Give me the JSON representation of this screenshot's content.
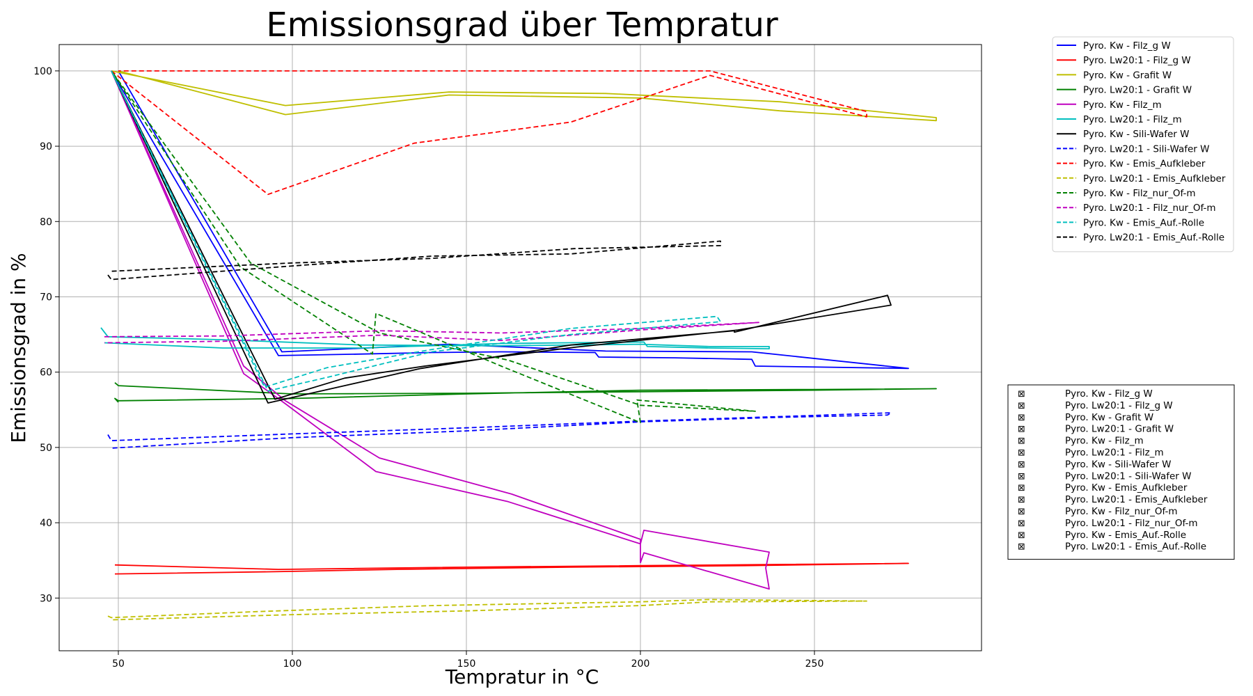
{
  "chart_data": {
    "type": "line",
    "title": "Emissionsgrad über Tempratur",
    "xlabel": "Tempratur in °C",
    "ylabel": "Emissionsgrad in %",
    "xlim": [
      33,
      298
    ],
    "ylim": [
      23,
      103.5
    ],
    "xticks": [
      50,
      100,
      150,
      200,
      250
    ],
    "yticks": [
      30,
      40,
      50,
      60,
      70,
      80,
      90,
      100
    ],
    "grid": true,
    "legend_position": "top-right, outside plot",
    "series": [
      {
        "name": "Pyro. Kw - Filz_g W",
        "color": "#0000ff",
        "dash": "solid",
        "points": [
          [
            48,
            100
          ],
          [
            96,
            62.2
          ],
          [
            120,
            62.4
          ],
          [
            140,
            62.6
          ],
          [
            160,
            62.7
          ],
          [
            187,
            62.6
          ],
          [
            188,
            62.0
          ],
          [
            210,
            61.9
          ],
          [
            232,
            61.7
          ],
          [
            233,
            60.8
          ],
          [
            277,
            60.5
          ],
          [
            232,
            62.7
          ],
          [
            190,
            62.8
          ],
          [
            145,
            63.7
          ],
          [
            97,
            62.7
          ],
          [
            50,
            100
          ]
        ]
      },
      {
        "name": "Pyro. Lw20:1 - Filz_g W",
        "color": "#ff0000",
        "dash": "solid",
        "points": [
          [
            49,
            34.4
          ],
          [
            96,
            33.8
          ],
          [
            150,
            34.1
          ],
          [
            200,
            34.3
          ],
          [
            250,
            34.5
          ],
          [
            277,
            34.6
          ],
          [
            230,
            34.3
          ],
          [
            180,
            34.1
          ],
          [
            130,
            33.8
          ],
          [
            95,
            33.5
          ],
          [
            49,
            33.2
          ]
        ]
      },
      {
        "name": "Pyro. Kw - Grafit W",
        "color": "#bfbf00",
        "dash": "solid",
        "points": [
          [
            48,
            100
          ],
          [
            98,
            95.4
          ],
          [
            145,
            97.2
          ],
          [
            190,
            97.0
          ],
          [
            240,
            95.9
          ],
          [
            285,
            93.8
          ],
          [
            285,
            93.4
          ],
          [
            240,
            94.7
          ],
          [
            200,
            96.4
          ],
          [
            145,
            96.8
          ],
          [
            98,
            94.2
          ],
          [
            50,
            100
          ]
        ]
      },
      {
        "name": "Pyro. Lw20:1 - Grafit W",
        "color": "#008000",
        "dash": "solid",
        "points": [
          [
            49,
            58.6
          ],
          [
            50,
            58.2
          ],
          [
            100,
            57.1
          ],
          [
            150,
            57.2
          ],
          [
            200,
            57.4
          ],
          [
            250,
            57.6
          ],
          [
            285,
            57.8
          ],
          [
            250,
            57.7
          ],
          [
            200,
            57.6
          ],
          [
            150,
            57.1
          ],
          [
            100,
            56.5
          ],
          [
            50,
            56.2
          ],
          [
            49,
            56.5
          ],
          [
            50,
            56.0
          ]
        ]
      },
      {
        "name": "Pyro. Kw - Filz_m",
        "color": "#bf00bf",
        "dash": "solid",
        "points": [
          [
            48,
            100
          ],
          [
            86,
            60.8
          ],
          [
            98,
            56.2
          ],
          [
            125,
            48.6
          ],
          [
            163,
            43.8
          ],
          [
            200,
            37.8
          ],
          [
            200,
            34.7
          ],
          [
            201,
            36.0
          ],
          [
            237,
            31.2
          ],
          [
            236,
            34.0
          ],
          [
            237,
            36.1
          ],
          [
            201,
            39.0
          ],
          [
            200,
            37.2
          ],
          [
            162,
            42.8
          ],
          [
            124,
            46.8
          ],
          [
            98,
            55.8
          ],
          [
            86,
            59.8
          ],
          [
            48,
            100
          ]
        ]
      },
      {
        "name": "Pyro. Lw20:1 - Filz_m",
        "color": "#00bfbf",
        "dash": "solid",
        "points": [
          [
            45,
            65.9
          ],
          [
            47,
            64.7
          ],
          [
            80,
            64.3
          ],
          [
            120,
            63.6
          ],
          [
            160,
            63.5
          ],
          [
            200,
            63.7
          ],
          [
            220,
            63.4
          ],
          [
            237,
            63.4
          ],
          [
            237,
            63.1
          ],
          [
            220,
            63.2
          ],
          [
            202,
            63.4
          ],
          [
            201,
            64.0
          ],
          [
            160,
            63.8
          ],
          [
            120,
            63.2
          ],
          [
            80,
            63.2
          ],
          [
            46,
            63.9
          ]
        ]
      },
      {
        "name": "Pyro. Kw - Sili-Wafer W",
        "color": "#000000",
        "dash": "solid",
        "points": [
          [
            48,
            100
          ],
          [
            93,
            55.9
          ],
          [
            115,
            58.2
          ],
          [
            137,
            60.5
          ],
          [
            180,
            63.6
          ],
          [
            227,
            65.5
          ],
          [
            227,
            65.3
          ],
          [
            271,
            70.2
          ],
          [
            272,
            68.9
          ],
          [
            228,
            65.6
          ],
          [
            181,
            63.3
          ],
          [
            138,
            60.8
          ],
          [
            115,
            59.2
          ],
          [
            95,
            56.4
          ],
          [
            48,
            100
          ]
        ]
      },
      {
        "name": "Pyro. Lw20:1 - Sili-Wafer W",
        "color": "#0000ff",
        "dash": "dashed",
        "points": [
          [
            47,
            51.7
          ],
          [
            48,
            50.9
          ],
          [
            100,
            51.8
          ],
          [
            150,
            52.6
          ],
          [
            200,
            53.5
          ],
          [
            240,
            54.1
          ],
          [
            272,
            54.6
          ],
          [
            271,
            54.3
          ],
          [
            240,
            54.0
          ],
          [
            200,
            53.4
          ],
          [
            150,
            52.2
          ],
          [
            100,
            51.3
          ],
          [
            48,
            49.9
          ]
        ]
      },
      {
        "name": "Pyro. Kw - Emis_Aufkleber",
        "color": "#ff0000",
        "dash": "dashed",
        "points": [
          [
            48,
            100
          ],
          [
            93,
            83.6
          ],
          [
            135,
            90.4
          ],
          [
            180,
            93.2
          ],
          [
            220,
            99.4
          ],
          [
            265,
            93.9
          ],
          [
            265,
            94.6
          ],
          [
            220,
            100
          ],
          [
            150,
            100
          ],
          [
            100,
            100
          ],
          [
            50,
            100
          ]
        ]
      },
      {
        "name": "Pyro. Lw20:1 - Emis_Aufkleber",
        "color": "#bfbf00",
        "dash": "dashed",
        "points": [
          [
            47,
            27.6
          ],
          [
            48,
            27.4
          ],
          [
            90,
            28.2
          ],
          [
            140,
            29.0
          ],
          [
            200,
            29.5
          ],
          [
            220,
            29.8
          ],
          [
            265,
            29.6
          ],
          [
            220,
            29.5
          ],
          [
            200,
            29.0
          ],
          [
            150,
            28.3
          ],
          [
            100,
            27.8
          ],
          [
            48,
            27.1
          ]
        ]
      },
      {
        "name": "Pyro. Kw - Filz_nur_Of-m",
        "color": "#008000",
        "dash": "dashed",
        "points": [
          [
            48,
            100
          ],
          [
            85,
            74.0
          ],
          [
            123,
            62.4
          ],
          [
            124,
            67.8
          ],
          [
            160,
            60.8
          ],
          [
            200,
            53.3
          ],
          [
            199,
            56.3
          ],
          [
            233,
            54.8
          ],
          [
            200,
            55.6
          ],
          [
            162,
            61.6
          ],
          [
            125,
            65.2
          ],
          [
            88,
            74.5
          ],
          [
            48,
            100
          ]
        ]
      },
      {
        "name": "Pyro. Lw20:1 - Filz_nur_Of-m",
        "color": "#bf00bf",
        "dash": "dashed",
        "points": [
          [
            46,
            64.7
          ],
          [
            80,
            64.8
          ],
          [
            125,
            65.5
          ],
          [
            160,
            65.2
          ],
          [
            200,
            65.8
          ],
          [
            234,
            66.6
          ],
          [
            200,
            65.6
          ],
          [
            160,
            64.2
          ],
          [
            125,
            64.9
          ],
          [
            80,
            64.1
          ],
          [
            46,
            63.9
          ]
        ]
      },
      {
        "name": "Pyro. Kw - Emis_Auf.-Rolle",
        "color": "#00bfbf",
        "dash": "dashed",
        "points": [
          [
            48,
            100
          ],
          [
            92,
            58.0
          ],
          [
            110,
            60.6
          ],
          [
            140,
            63.0
          ],
          [
            180,
            65.8
          ],
          [
            222,
            67.4
          ],
          [
            223,
            66.7
          ],
          [
            180,
            65.0
          ],
          [
            140,
            62.7
          ],
          [
            110,
            59.3
          ],
          [
            93,
            57.5
          ],
          [
            48,
            100
          ]
        ]
      },
      {
        "name": "Pyro. Lw20:1 - Emis_Auf.-Rolle",
        "color": "#000000",
        "dash": "dashed",
        "points": [
          [
            47,
            72.9
          ],
          [
            48,
            72.3
          ],
          [
            100,
            74.1
          ],
          [
            140,
            75.4
          ],
          [
            180,
            75.7
          ],
          [
            223,
            77.4
          ],
          [
            223,
            76.8
          ],
          [
            181,
            76.4
          ],
          [
            140,
            75.1
          ],
          [
            100,
            74.5
          ],
          [
            48,
            73.4
          ]
        ]
      }
    ]
  },
  "legend2": {
    "marker": "⊠",
    "entries": [
      "Pyro. Kw - Filz_g W",
      "Pyro. Lw20:1 - Filz_g W",
      "Pyro. Kw - Grafit W",
      "Pyro. Lw20:1 - Grafit W",
      "Pyro. Kw - Filz_m",
      "Pyro. Lw20:1 - Filz_m",
      "Pyro. Kw - Sili-Wafer W",
      "Pyro. Lw20:1 - Sili-Wafer W",
      "Pyro. Kw - Emis_Aufkleber",
      "Pyro. Lw20:1 - Emis_Aufkleber",
      "Pyro. Kw - Filz_nur_Of-m",
      "Pyro. Lw20:1 - Filz_nur_Of-m",
      "Pyro. Kw - Emis_Auf.-Rolle",
      "Pyro. Lw20:1 - Emis_Auf.-Rolle"
    ]
  }
}
